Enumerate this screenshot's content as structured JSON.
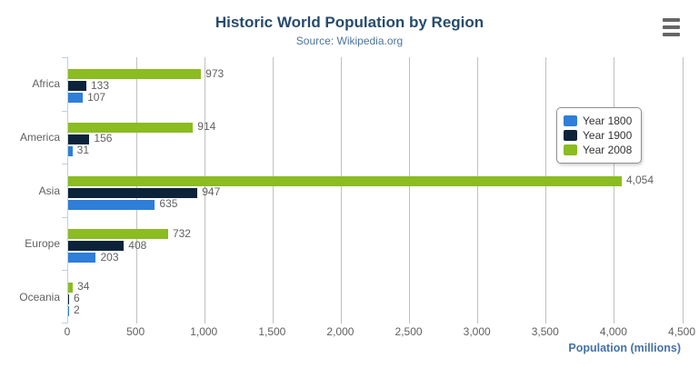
{
  "chart_data": {
    "type": "bar",
    "orientation": "horizontal",
    "title": "Historic World Population by Region",
    "subtitle": "Source: Wikipedia.org",
    "categories": [
      "Africa",
      "America",
      "Asia",
      "Europe",
      "Oceania"
    ],
    "series": [
      {
        "name": "Year 1800",
        "color": "#2f7ed8",
        "values": [
          107,
          31,
          635,
          203,
          2
        ]
      },
      {
        "name": "Year 1900",
        "color": "#0d233a",
        "values": [
          133,
          156,
          947,
          408,
          6
        ]
      },
      {
        "name": "Year 2008",
        "color": "#8bbc21",
        "values": [
          973,
          914,
          4054,
          732,
          34
        ]
      }
    ],
    "data_labels": [
      "107",
      "31",
      "635",
      "203",
      "2",
      "133",
      "156",
      "947",
      "408",
      "6",
      "973",
      "914",
      "4,054",
      "732",
      "34"
    ],
    "xlabel": "Population (millions)",
    "xticks": [
      0,
      500,
      1000,
      1500,
      2000,
      2500,
      3000,
      3500,
      4000,
      4500
    ],
    "xtick_labels": [
      "0",
      "500",
      "1,000",
      "1,500",
      "2,000",
      "2,500",
      "3,000",
      "3,500",
      "4,000",
      "4,500"
    ],
    "xlim": [
      0,
      4500
    ],
    "grid": true,
    "legend_position": "right-overlay",
    "legend_items": [
      "Year 1800",
      "Year 1900",
      "Year 2008"
    ]
  },
  "export_menu": {
    "icon": "hamburger-icon"
  },
  "styles": {
    "title_color": "#274b6d",
    "subtitle_color": "#4d759e",
    "label_color": "#606060",
    "axis_title_color": "#4572a7",
    "grid_color": "#c0c0c0",
    "axis_line_color": "#c0d0e0",
    "legend_border_color": "#909090",
    "legend_text_color": "#333333",
    "menu_icon_color": "#666666",
    "background": "#ffffff"
  }
}
